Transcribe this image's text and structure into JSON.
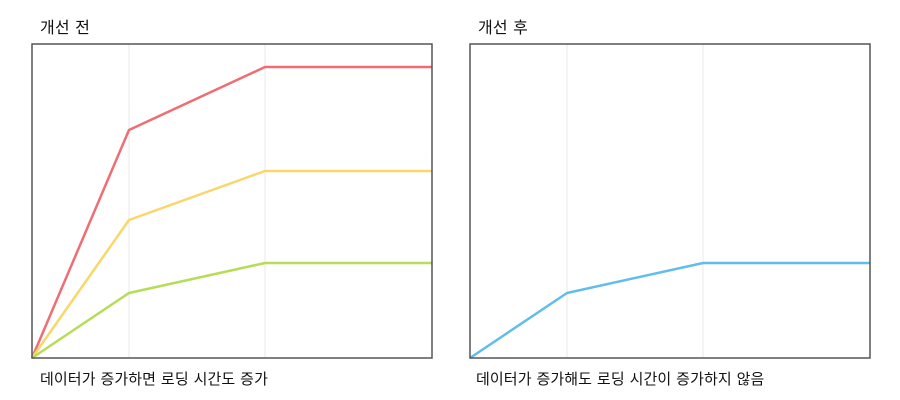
{
  "panels": [
    {
      "title": "개선 전",
      "caption": "데이터가 증가하면 로딩 시간도 증가"
    },
    {
      "title": "개선 후",
      "caption": "데이터가 증가해도 로딩 시간이 증가하지 않음"
    }
  ],
  "colors": {
    "red": "#ee6e73",
    "yellow": "#fbd66b",
    "green": "#b6dd57",
    "blue": "#61bdee",
    "frame": "#555555",
    "grid": "#e8e8e8"
  },
  "chart_data": [
    {
      "type": "line",
      "title": "개선 전",
      "xlabel": "데이터가 증가하면 로딩 시간도 증가",
      "ylabel": "",
      "x": [
        0,
        1,
        2,
        3
      ],
      "x_units": "index (x-axis unlabeled)",
      "y_units": "screen pixels above plot bottom (y-axis unlabeled)",
      "ylim": [
        0,
        314
      ],
      "grid": {
        "vertical": true,
        "horizontal": false
      },
      "legend": "none",
      "series": [
        {
          "name": "red",
          "color": "#ee6e73",
          "values": [
            0,
            228,
            291,
            291
          ]
        },
        {
          "name": "yellow",
          "color": "#fbd66b",
          "values": [
            0,
            138,
            187,
            187
          ]
        },
        {
          "name": "green",
          "color": "#b6dd57",
          "values": [
            0,
            65,
            95,
            95
          ]
        }
      ]
    },
    {
      "type": "line",
      "title": "개선 후",
      "xlabel": "데이터가 증가해도 로딩 시간이 증가하지 않음",
      "ylabel": "",
      "x": [
        0,
        1,
        2,
        3
      ],
      "x_units": "index (x-axis unlabeled)",
      "y_units": "screen pixels above plot bottom (y-axis unlabeled)",
      "ylim": [
        0,
        314
      ],
      "grid": {
        "vertical": true,
        "horizontal": false
      },
      "legend": "none",
      "series": [
        {
          "name": "blue",
          "color": "#61bdee",
          "values": [
            0,
            65,
            95,
            95
          ]
        }
      ]
    }
  ]
}
